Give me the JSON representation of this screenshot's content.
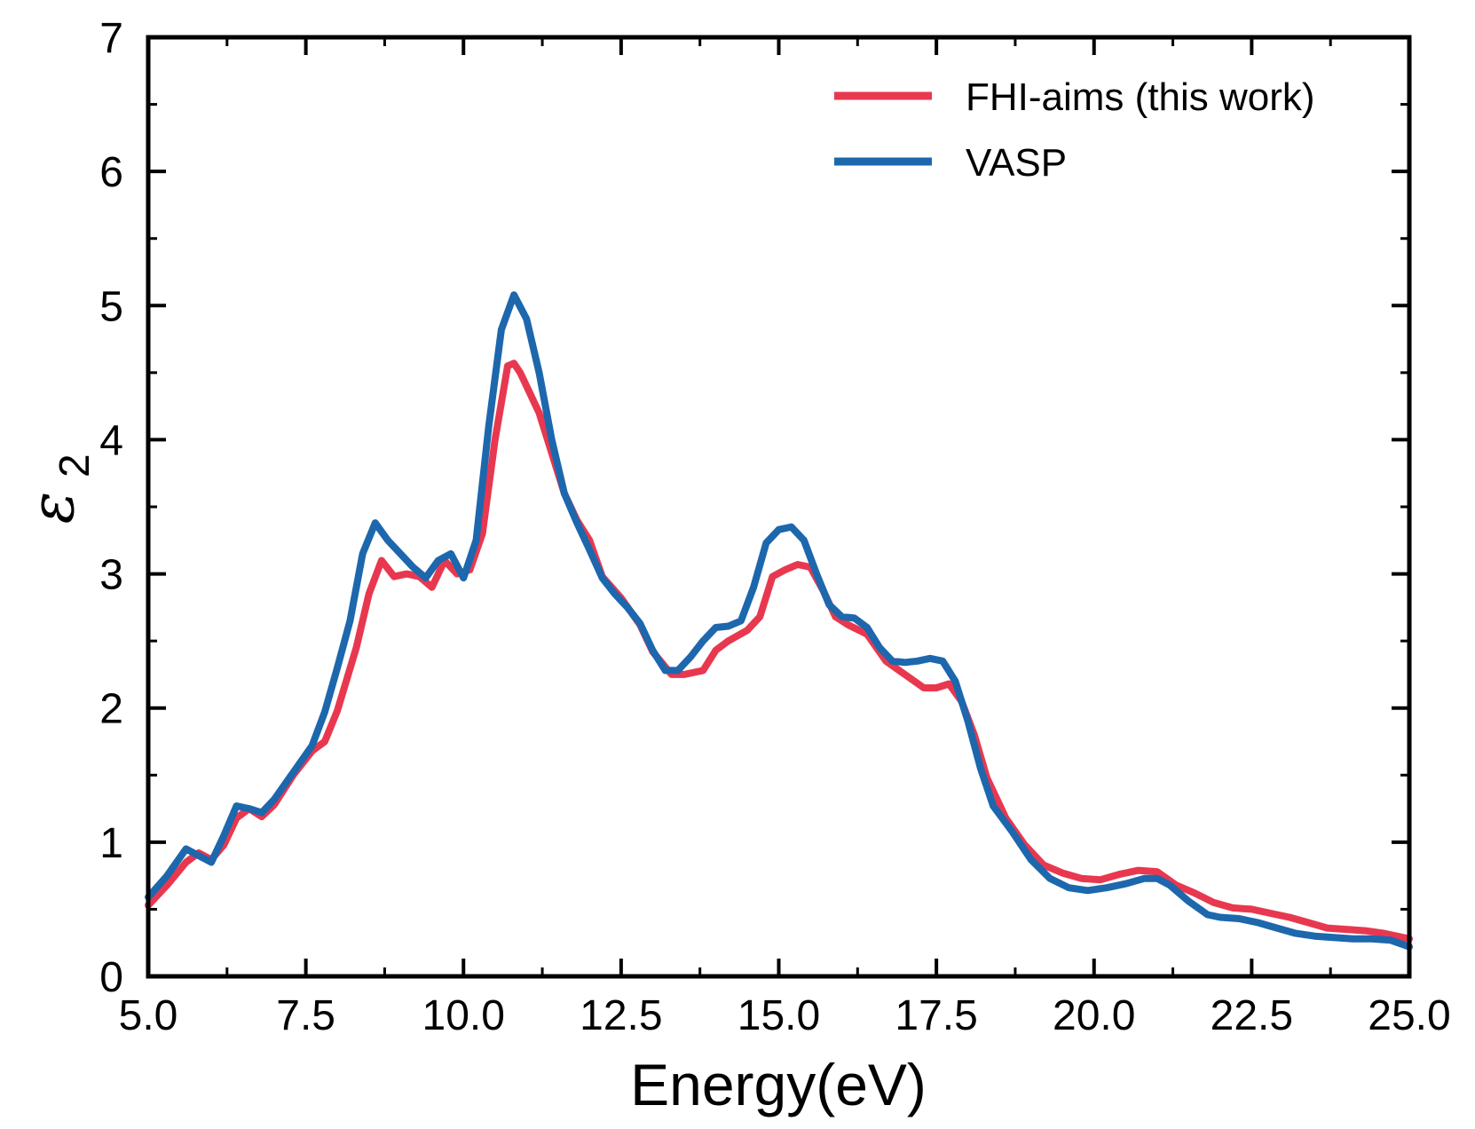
{
  "chart_data": {
    "type": "line",
    "title": "",
    "xlabel": "Energy(eV)",
    "ylabel_symbol": "ε",
    "ylabel_subscript": "2",
    "xlim": [
      5.0,
      25.0
    ],
    "ylim": [
      0,
      7
    ],
    "xticks": [
      5.0,
      7.5,
      10.0,
      12.5,
      15.0,
      17.5,
      20.0,
      22.5,
      25.0
    ],
    "xtick_labels": [
      "5.0",
      "7.5",
      "10.0",
      "12.5",
      "15.0",
      "17.5",
      "20.0",
      "22.5",
      "25.0"
    ],
    "yticks": [
      0,
      1,
      2,
      3,
      4,
      5,
      6,
      7
    ],
    "ytick_labels": [
      "0",
      "1",
      "2",
      "3",
      "4",
      "5",
      "6",
      "7"
    ],
    "grid": false,
    "legend_position": "top-right",
    "series": [
      {
        "name": "FHI-aims (this work)",
        "color": "#e8384f",
        "x": [
          5.0,
          5.3,
          5.6,
          5.8,
          6.0,
          6.2,
          6.4,
          6.6,
          6.8,
          7.0,
          7.3,
          7.6,
          7.8,
          8.0,
          8.3,
          8.5,
          8.7,
          8.9,
          9.1,
          9.3,
          9.5,
          9.7,
          9.9,
          10.1,
          10.3,
          10.5,
          10.7,
          10.8,
          10.9,
          11.0,
          11.2,
          11.4,
          11.6,
          11.8,
          12.0,
          12.2,
          12.5,
          12.8,
          13.0,
          13.3,
          13.5,
          13.8,
          14.0,
          14.2,
          14.5,
          14.7,
          14.9,
          15.1,
          15.3,
          15.5,
          15.7,
          15.9,
          16.1,
          16.4,
          16.7,
          17.0,
          17.3,
          17.5,
          17.7,
          17.9,
          18.1,
          18.3,
          18.6,
          18.9,
          19.2,
          19.5,
          19.8,
          20.1,
          20.4,
          20.7,
          21.0,
          21.3,
          21.6,
          21.9,
          22.2,
          22.5,
          22.8,
          23.1,
          23.4,
          23.7,
          24.0,
          24.3,
          24.6,
          25.0
        ],
        "y": [
          0.53,
          0.68,
          0.85,
          0.92,
          0.87,
          0.98,
          1.18,
          1.25,
          1.19,
          1.28,
          1.5,
          1.68,
          1.75,
          1.98,
          2.45,
          2.85,
          3.1,
          2.98,
          3.0,
          2.98,
          2.9,
          3.1,
          3.0,
          3.03,
          3.3,
          4.0,
          4.55,
          4.57,
          4.5,
          4.4,
          4.2,
          3.9,
          3.6,
          3.4,
          3.25,
          2.98,
          2.82,
          2.62,
          2.42,
          2.25,
          2.25,
          2.28,
          2.43,
          2.5,
          2.58,
          2.68,
          2.98,
          3.03,
          3.07,
          3.05,
          2.88,
          2.68,
          2.62,
          2.55,
          2.35,
          2.25,
          2.15,
          2.15,
          2.18,
          2.05,
          1.8,
          1.48,
          1.18,
          0.98,
          0.83,
          0.77,
          0.73,
          0.72,
          0.76,
          0.79,
          0.78,
          0.68,
          0.62,
          0.55,
          0.51,
          0.5,
          0.47,
          0.44,
          0.4,
          0.36,
          0.35,
          0.34,
          0.32,
          0.28
        ]
      },
      {
        "name": "VASP",
        "color": "#1d67ad",
        "x": [
          5.0,
          5.3,
          5.6,
          5.8,
          6.0,
          6.2,
          6.4,
          6.6,
          6.8,
          7.0,
          7.3,
          7.6,
          7.8,
          8.0,
          8.2,
          8.4,
          8.6,
          8.8,
          9.0,
          9.2,
          9.4,
          9.6,
          9.8,
          10.0,
          10.2,
          10.4,
          10.6,
          10.8,
          11.0,
          11.2,
          11.4,
          11.6,
          11.8,
          12.0,
          12.2,
          12.4,
          12.6,
          12.8,
          13.0,
          13.2,
          13.4,
          13.6,
          13.8,
          14.0,
          14.2,
          14.4,
          14.6,
          14.8,
          15.0,
          15.2,
          15.4,
          15.6,
          15.8,
          16.0,
          16.2,
          16.4,
          16.6,
          16.8,
          17.0,
          17.2,
          17.4,
          17.6,
          17.8,
          18.0,
          18.2,
          18.4,
          18.7,
          19.0,
          19.3,
          19.6,
          19.9,
          20.2,
          20.5,
          20.8,
          21.0,
          21.2,
          21.5,
          21.8,
          22.0,
          22.3,
          22.6,
          22.9,
          23.2,
          23.5,
          23.8,
          24.1,
          24.4,
          24.7,
          25.0
        ],
        "y": [
          0.59,
          0.75,
          0.95,
          0.9,
          0.85,
          1.05,
          1.27,
          1.25,
          1.22,
          1.32,
          1.52,
          1.72,
          1.97,
          2.3,
          2.65,
          3.15,
          3.38,
          3.25,
          3.15,
          3.05,
          2.97,
          3.1,
          3.15,
          2.97,
          3.25,
          4.1,
          4.82,
          5.08,
          4.9,
          4.5,
          4.0,
          3.6,
          3.38,
          3.18,
          2.97,
          2.85,
          2.75,
          2.63,
          2.43,
          2.28,
          2.28,
          2.38,
          2.5,
          2.6,
          2.61,
          2.65,
          2.9,
          3.23,
          3.33,
          3.35,
          3.25,
          3.0,
          2.77,
          2.68,
          2.67,
          2.6,
          2.45,
          2.35,
          2.34,
          2.35,
          2.37,
          2.35,
          2.2,
          1.9,
          1.55,
          1.27,
          1.08,
          0.87,
          0.73,
          0.66,
          0.64,
          0.66,
          0.69,
          0.73,
          0.73,
          0.68,
          0.56,
          0.46,
          0.44,
          0.43,
          0.4,
          0.36,
          0.32,
          0.3,
          0.29,
          0.28,
          0.28,
          0.27,
          0.22
        ]
      }
    ]
  }
}
